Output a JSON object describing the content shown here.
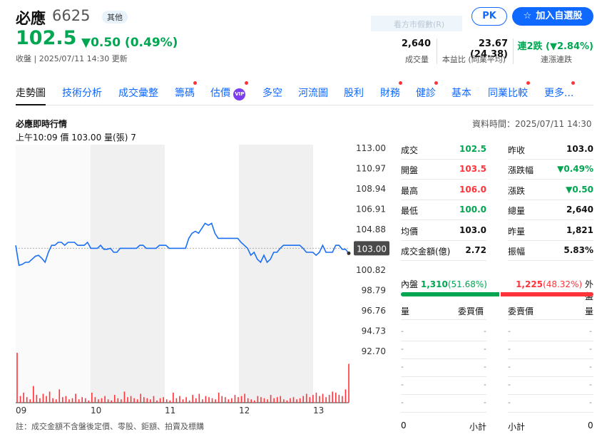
{
  "header": {
    "stock_name": "必應",
    "stock_code": "6625",
    "market_badge": "其他",
    "price": "102.5",
    "change": "▼0.50 (0.49%)",
    "status": "收盤 | 2025/07/11 14:30 更新",
    "faded_text": "看方市假數(R)",
    "pk_label": "PK",
    "watch_label": "加入自選股",
    "watch_icon": "star-icon"
  },
  "stats": [
    {
      "value": "2,640",
      "label": "成交量"
    },
    {
      "value": "23.67 (24.38)",
      "label": "本益比 (同業平均)"
    },
    {
      "value": "連2跌 (▼2.84%)",
      "label": "連漲連跌"
    }
  ],
  "tabs": [
    {
      "label": "走勢圖",
      "active": true,
      "dot": false
    },
    {
      "label": "技術分析",
      "active": false,
      "dot": false
    },
    {
      "label": "成交彙整",
      "active": false,
      "dot": false
    },
    {
      "label": "籌碼",
      "active": false,
      "dot": true
    },
    {
      "label": "估價",
      "active": false,
      "dot": true,
      "vip": "VIP"
    },
    {
      "label": "多空",
      "active": false,
      "dot": false
    },
    {
      "label": "河流圖",
      "active": false,
      "dot": false
    },
    {
      "label": "股利",
      "active": false,
      "dot": false
    },
    {
      "label": "財務",
      "active": false,
      "dot": true
    },
    {
      "label": "健診",
      "active": false,
      "dot": true
    },
    {
      "label": "基本",
      "active": false,
      "dot": false
    },
    {
      "label": "同業比較",
      "active": false,
      "dot": true
    },
    {
      "label": "更多...",
      "active": false,
      "dot": true
    }
  ],
  "chart_header": {
    "title": "必應即時行情",
    "cursor_info": "上午10:09  價 103.00  量(張) 7",
    "data_time": "資料時間：2025/07/11 14:30"
  },
  "chart_data": {
    "type": "line",
    "x_labels": [
      "09",
      "10",
      "11",
      "12",
      "13"
    ],
    "y_ticks": [
      "113.00",
      "110.97",
      "108.94",
      "106.91",
      "104.88",
      "103.00",
      "100.82",
      "98.79",
      "96.76",
      "94.73",
      "92.70"
    ],
    "reference_price": 103.0,
    "last_price": "103.00",
    "ylim": [
      92.7,
      113.0
    ],
    "price_series": [
      103.3,
      101.3,
      101.4,
      101.6,
      101.6,
      101.9,
      102.2,
      102.3,
      102.0,
      101.6,
      102.6,
      103.3,
      103.3,
      103.6,
      103.6,
      103.3,
      103.6,
      103.6,
      103.6,
      103.3,
      103.3,
      103.3,
      103.6,
      103.0,
      103.0,
      103.0,
      103.3,
      102.9,
      102.9,
      103.0,
      102.6,
      102.6,
      103.0,
      103.0,
      103.0,
      103.0,
      103.0,
      103.0,
      103.3,
      103.3,
      103.0,
      103.0,
      103.0,
      103.0,
      103.3,
      103.3,
      103.3,
      103.0,
      103.0,
      103.0,
      103.0,
      103.0,
      103.0,
      104.0,
      104.5,
      104.7,
      104.5,
      105.0,
      105.5,
      105.3,
      105.5,
      104.5,
      104.0,
      104.0,
      104.0,
      104.0,
      104.0,
      104.0,
      104.0,
      103.6,
      103.3,
      103.0,
      102.3,
      102.6,
      101.9,
      101.6,
      102.3,
      101.6,
      101.9,
      102.6,
      102.6,
      103.0,
      103.3,
      103.3,
      103.3,
      103.3,
      103.3,
      103.3,
      103.0,
      102.6,
      102.6,
      102.6,
      102.3,
      102.6,
      103.3,
      102.6,
      102.6,
      102.6,
      103.3,
      103.3,
      102.9,
      102.9,
      102.5
    ],
    "volume_series": [
      45,
      6,
      9,
      5,
      3,
      15,
      7,
      4,
      8,
      6,
      10,
      4,
      3,
      12,
      5,
      6,
      3,
      4,
      8,
      3,
      5,
      4,
      2,
      9,
      5,
      3,
      4,
      6,
      3,
      2,
      7,
      4,
      3,
      10,
      5,
      6,
      4,
      3,
      8,
      5,
      4,
      3,
      6,
      2,
      4,
      5,
      3,
      2,
      9,
      4,
      6,
      3,
      5,
      2,
      7,
      4,
      8,
      3,
      6,
      5,
      4,
      3,
      9,
      6,
      5,
      3,
      4,
      7,
      5,
      6,
      8,
      4,
      3,
      2,
      6,
      5,
      4,
      3,
      7,
      4,
      5,
      6,
      3,
      2,
      4,
      5,
      3,
      4,
      6,
      8,
      5,
      7,
      9,
      6,
      8,
      5,
      7,
      10,
      9,
      7,
      6,
      12,
      35
    ],
    "volume_max": 45,
    "shaded_bands": [
      "10",
      "12"
    ]
  },
  "quote": {
    "left": [
      {
        "label": "成交",
        "value": "102.5",
        "tone": "neg"
      },
      {
        "label": "開盤",
        "value": "103.5",
        "tone": "pos"
      },
      {
        "label": "最高",
        "value": "106.0",
        "tone": "pos"
      },
      {
        "label": "最低",
        "value": "100.0",
        "tone": "neg"
      },
      {
        "label": "均價",
        "value": "103.0",
        "tone": "blk"
      },
      {
        "label": "成交金額(億)",
        "value": "2.72",
        "tone": "blk"
      }
    ],
    "right": [
      {
        "label": "昨收",
        "value": "103.0",
        "tone": "blk"
      },
      {
        "label": "漲跌幅",
        "value": "▼0.49%",
        "tone": "neg"
      },
      {
        "label": "漲跌",
        "value": "▼0.50",
        "tone": "neg"
      },
      {
        "label": "總量",
        "value": "2,640",
        "tone": "blk"
      },
      {
        "label": "昨量",
        "value": "1,821",
        "tone": "blk"
      },
      {
        "label": "振幅",
        "value": "5.83%",
        "tone": "blk"
      }
    ]
  },
  "inner_outer": {
    "inner_label": "內盤",
    "inner_value": "1,310",
    "inner_pct": "(51.68%)",
    "inner_fraction": 0.5168,
    "outer_value": "1,225",
    "outer_pct": "(48.32%)",
    "outer_label": "外盤"
  },
  "order_book": {
    "bid_qty_head": "量",
    "bid_price_head": "委買價",
    "ask_price_head": "委賣價",
    "ask_qty_head": "量",
    "dash": "-",
    "bid_total": "0",
    "bid_total_label": "小計",
    "ask_total_label": "小計",
    "ask_total": "0"
  },
  "footnote": "註：成交金額不含盤後定價、零股、鉅額、拍賣及標購",
  "colors": {
    "up": "#ff333a",
    "down": "#00a651",
    "line": "#1b6ff5",
    "accent": "#0f69ff"
  }
}
